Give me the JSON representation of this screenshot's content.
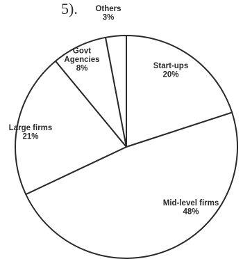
{
  "page": {
    "top_fragment": "5)."
  },
  "chart_data": {
    "type": "pie",
    "title": "",
    "slices": [
      {
        "label": "Start-ups",
        "value": 20,
        "value_label": "20%"
      },
      {
        "label": "Mid-level firms",
        "value": 48,
        "value_label": "48%"
      },
      {
        "label": "Large firms",
        "value": 21,
        "value_label": "21%"
      },
      {
        "label": "Govt Agencies",
        "value": 8,
        "value_label": "8%"
      },
      {
        "label": "Others",
        "value": 3,
        "value_label": "3%"
      }
    ],
    "legend": "none",
    "colors": {
      "fill": "#ffffff",
      "stroke": "#2a2a2a",
      "text": "#2a2a2a"
    }
  }
}
